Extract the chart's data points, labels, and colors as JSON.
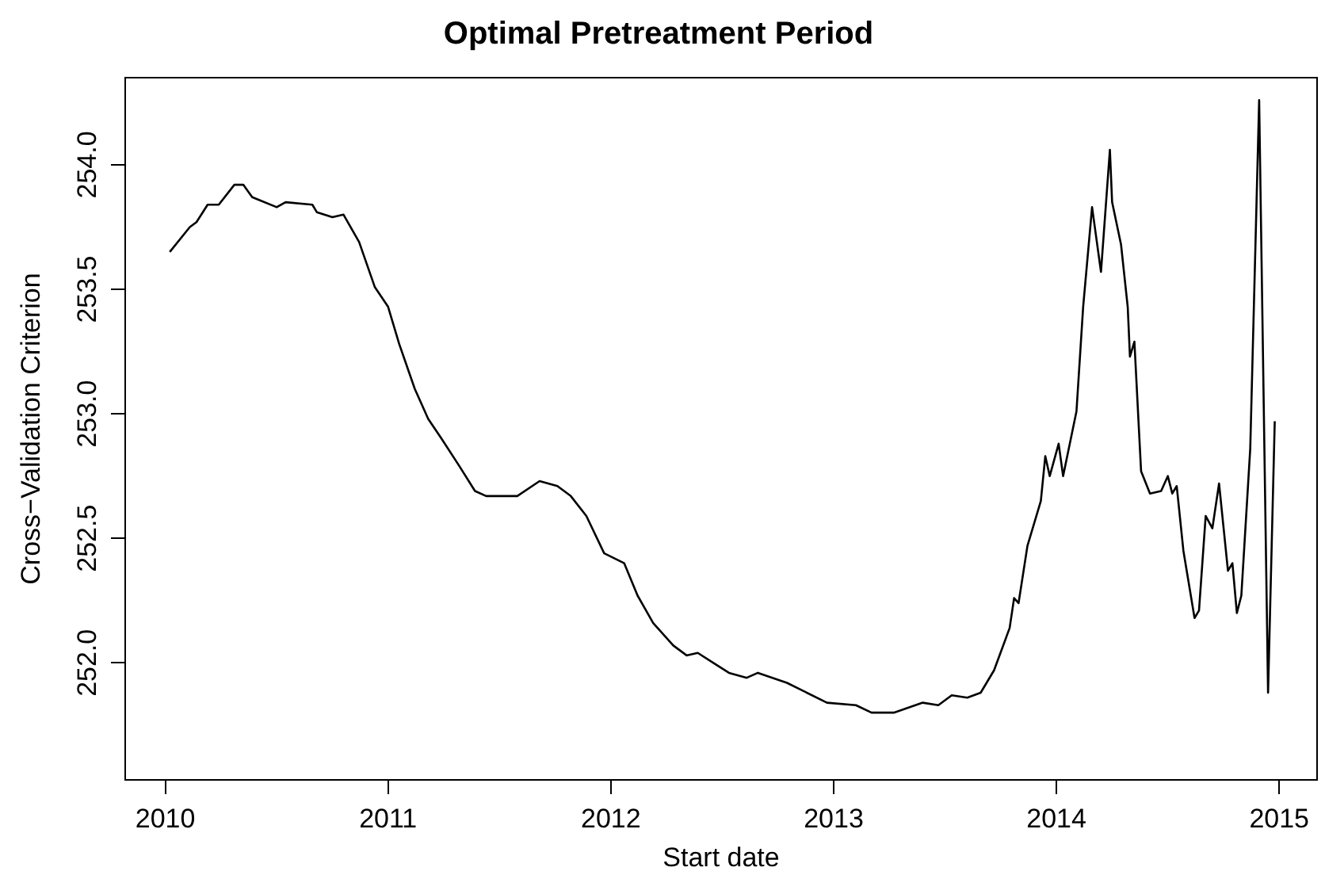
{
  "chart_data": {
    "type": "line",
    "title": "Optimal Pretreatment Period",
    "xlabel": "Start date",
    "ylabel": "Cross−Validation Criterion",
    "x": [
      2010.02,
      2010.11,
      2010.14,
      2010.19,
      2010.24,
      2010.31,
      2010.35,
      2010.39,
      2010.5,
      2010.54,
      2010.66,
      2010.68,
      2010.75,
      2010.8,
      2010.87,
      2010.94,
      2011.0,
      2011.05,
      2011.12,
      2011.18,
      2011.24,
      2011.32,
      2011.39,
      2011.44,
      2011.58,
      2011.68,
      2011.76,
      2011.82,
      2011.89,
      2011.97,
      2012.06,
      2012.12,
      2012.19,
      2012.28,
      2012.34,
      2012.39,
      2012.46,
      2012.53,
      2012.61,
      2012.66,
      2012.79,
      2012.97,
      2013.1,
      2013.17,
      2013.27,
      2013.4,
      2013.47,
      2013.53,
      2013.6,
      2013.66,
      2013.72,
      2013.79,
      2013.81,
      2013.83,
      2013.87,
      2013.93,
      2013.95,
      2013.97,
      2014.01,
      2014.03,
      2014.09,
      2014.12,
      2014.16,
      2014.2,
      2014.24,
      2014.25,
      2014.29,
      2014.32,
      2014.33,
      2014.35,
      2014.38,
      2014.42,
      2014.47,
      2014.5,
      2014.52,
      2014.54,
      2014.57,
      2014.62,
      2014.64,
      2014.67,
      2014.7,
      2014.73,
      2014.77,
      2014.79,
      2014.81,
      2014.83,
      2014.87,
      2014.91,
      2014.95,
      2014.98
    ],
    "series": [
      {
        "color": "#000000",
        "values": [
          253.65,
          253.75,
          253.77,
          253.84,
          253.84,
          253.92,
          253.92,
          253.87,
          253.83,
          253.85,
          253.84,
          253.81,
          253.79,
          253.8,
          253.69,
          253.51,
          253.43,
          253.28,
          253.1,
          252.98,
          252.9,
          252.79,
          252.69,
          252.67,
          252.67,
          252.73,
          252.71,
          252.67,
          252.59,
          252.44,
          252.4,
          252.27,
          252.16,
          252.07,
          252.03,
          252.04,
          252.0,
          251.96,
          251.94,
          251.96,
          251.92,
          251.84,
          251.83,
          251.8,
          251.8,
          251.84,
          251.83,
          251.87,
          251.86,
          251.88,
          251.97,
          252.14,
          252.26,
          252.24,
          252.47,
          252.65,
          252.83,
          252.75,
          252.88,
          252.75,
          253.01,
          253.43,
          253.83,
          253.57,
          254.06,
          253.85,
          253.68,
          253.43,
          253.23,
          253.29,
          252.77,
          252.68,
          252.69,
          252.75,
          252.68,
          252.71,
          252.45,
          252.18,
          252.21,
          252.59,
          252.54,
          252.72,
          252.37,
          252.4,
          252.2,
          252.27,
          252.86,
          254.26,
          251.88,
          252.97
        ]
      }
    ],
    "xlim": [
      2009.82,
      2015.17
    ],
    "xticks": [
      2010,
      2011,
      2012,
      2013,
      2014,
      2015
    ],
    "ylim": [
      251.53,
      254.35
    ],
    "yticks": [
      {
        "value": 252,
        "label": "252.0"
      },
      {
        "value": 252.5,
        "label": "252.5"
      },
      {
        "value": 253,
        "label": "253.0"
      },
      {
        "value": 253.5,
        "label": "253.5"
      },
      {
        "value": 254,
        "label": "254.0"
      }
    ],
    "grid": false,
    "legend": false,
    "marker": "none",
    "line_style": "solid"
  }
}
